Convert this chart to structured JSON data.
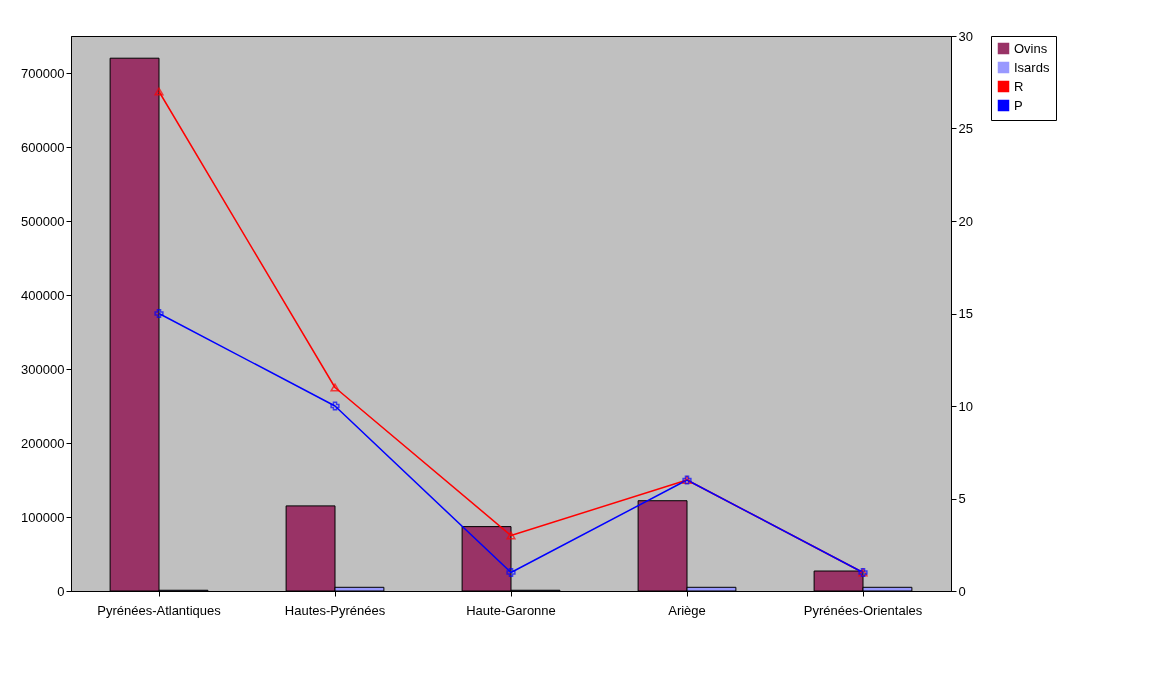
{
  "chart_data": {
    "type": "bar",
    "categories": [
      "Pyrénées-Atlantiques",
      "Hautes-Pyrénées",
      "Haute-Garonne",
      "Ariège",
      "Pyrénées-Orientales"
    ],
    "series": [
      {
        "name": "Ovins",
        "color": "#993366",
        "values": [
          720000,
          115000,
          87000,
          122000,
          27000
        ]
      },
      {
        "name": "Isards",
        "color": "#9999ff",
        "values": [
          1000,
          5000,
          1000,
          5000,
          5000
        ]
      },
      {
        "name": "R",
        "color": "#ff0000",
        "type": "line",
        "axis": "y2",
        "marker": "triangle",
        "values": [
          27,
          11,
          3,
          6,
          1
        ]
      },
      {
        "name": "P",
        "color": "#0000ff",
        "type": "line",
        "axis": "y2",
        "marker": "cross",
        "values": [
          15,
          10,
          1,
          6,
          1
        ]
      }
    ],
    "ylim": [
      0,
      750000
    ],
    "yticks": [
      0,
      100000,
      200000,
      300000,
      400000,
      500000,
      600000,
      700000
    ],
    "y2lim": [
      0,
      30
    ],
    "y2ticks": [
      0,
      5,
      10,
      15,
      20,
      25,
      30
    ],
    "grid": false,
    "legend": "right"
  }
}
